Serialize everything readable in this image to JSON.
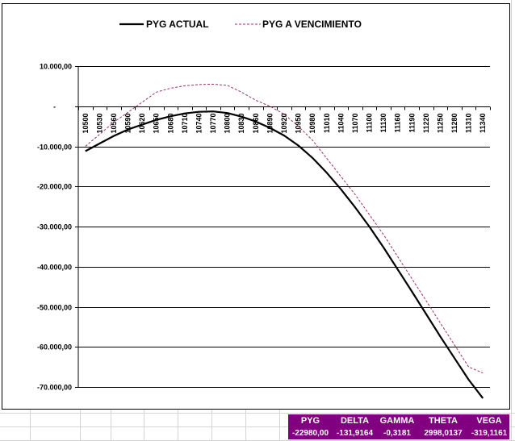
{
  "chart_data": {
    "type": "line",
    "title": "",
    "xlabel": "",
    "ylabel": "",
    "legend_position": "top",
    "grid": "horizontal",
    "ylim": [
      -70000,
      10000
    ],
    "y_ticks": [
      {
        "value": 10000,
        "label": "10.000,00"
      },
      {
        "value": 0,
        "label": "-"
      },
      {
        "value": -10000,
        "label": "-10.000,00"
      },
      {
        "value": -20000,
        "label": "-20.000,00"
      },
      {
        "value": -30000,
        "label": "-30.000,00"
      },
      {
        "value": -40000,
        "label": "-40.000,00"
      },
      {
        "value": -50000,
        "label": "-50.000,00"
      },
      {
        "value": -60000,
        "label": "-60.000,00"
      },
      {
        "value": -70000,
        "label": "-70.000,00"
      }
    ],
    "x": [
      10500,
      10530,
      10560,
      10590,
      10620,
      10650,
      10680,
      10710,
      10740,
      10770,
      10800,
      10830,
      10860,
      10890,
      10920,
      10950,
      10980,
      11010,
      11040,
      11070,
      11100,
      11130,
      11160,
      11190,
      11220,
      11250,
      11280,
      11310,
      11340
    ],
    "series": [
      {
        "name": "PYG ACTUAL",
        "color": "#000000",
        "style": "solid",
        "values": [
          -11200,
          -9300,
          -7400,
          -5800,
          -4600,
          -3400,
          -2500,
          -1800,
          -1400,
          -1300,
          -1700,
          -2600,
          -3800,
          -5400,
          -7300,
          -9800,
          -12900,
          -16600,
          -20700,
          -25200,
          -30000,
          -35200,
          -40700,
          -46200,
          -51800,
          -57400,
          -62800,
          -68200,
          -72800
        ]
      },
      {
        "name": "PYG A VENCIMIENTO",
        "color": "#993366",
        "style": "dashed",
        "values": [
          -10000,
          -7000,
          -4000,
          -1500,
          1000,
          3500,
          4500,
          5100,
          5400,
          5500,
          5200,
          3500,
          1500,
          0,
          -2000,
          -5000,
          -8500,
          -13000,
          -17500,
          -22000,
          -27000,
          -32000,
          -37500,
          -43000,
          -48500,
          -54000,
          -59500,
          -65000,
          -66500
        ]
      }
    ]
  },
  "greeks": {
    "headers": [
      "PYG",
      "DELTA",
      "GAMMA",
      "THETA",
      "VEGA"
    ],
    "values": [
      "-22980,00",
      "-131,9164",
      "-0,3181",
      "2998,0137",
      "-319,1161"
    ],
    "bg_color": "#800080",
    "text_color": "#ffffff"
  }
}
